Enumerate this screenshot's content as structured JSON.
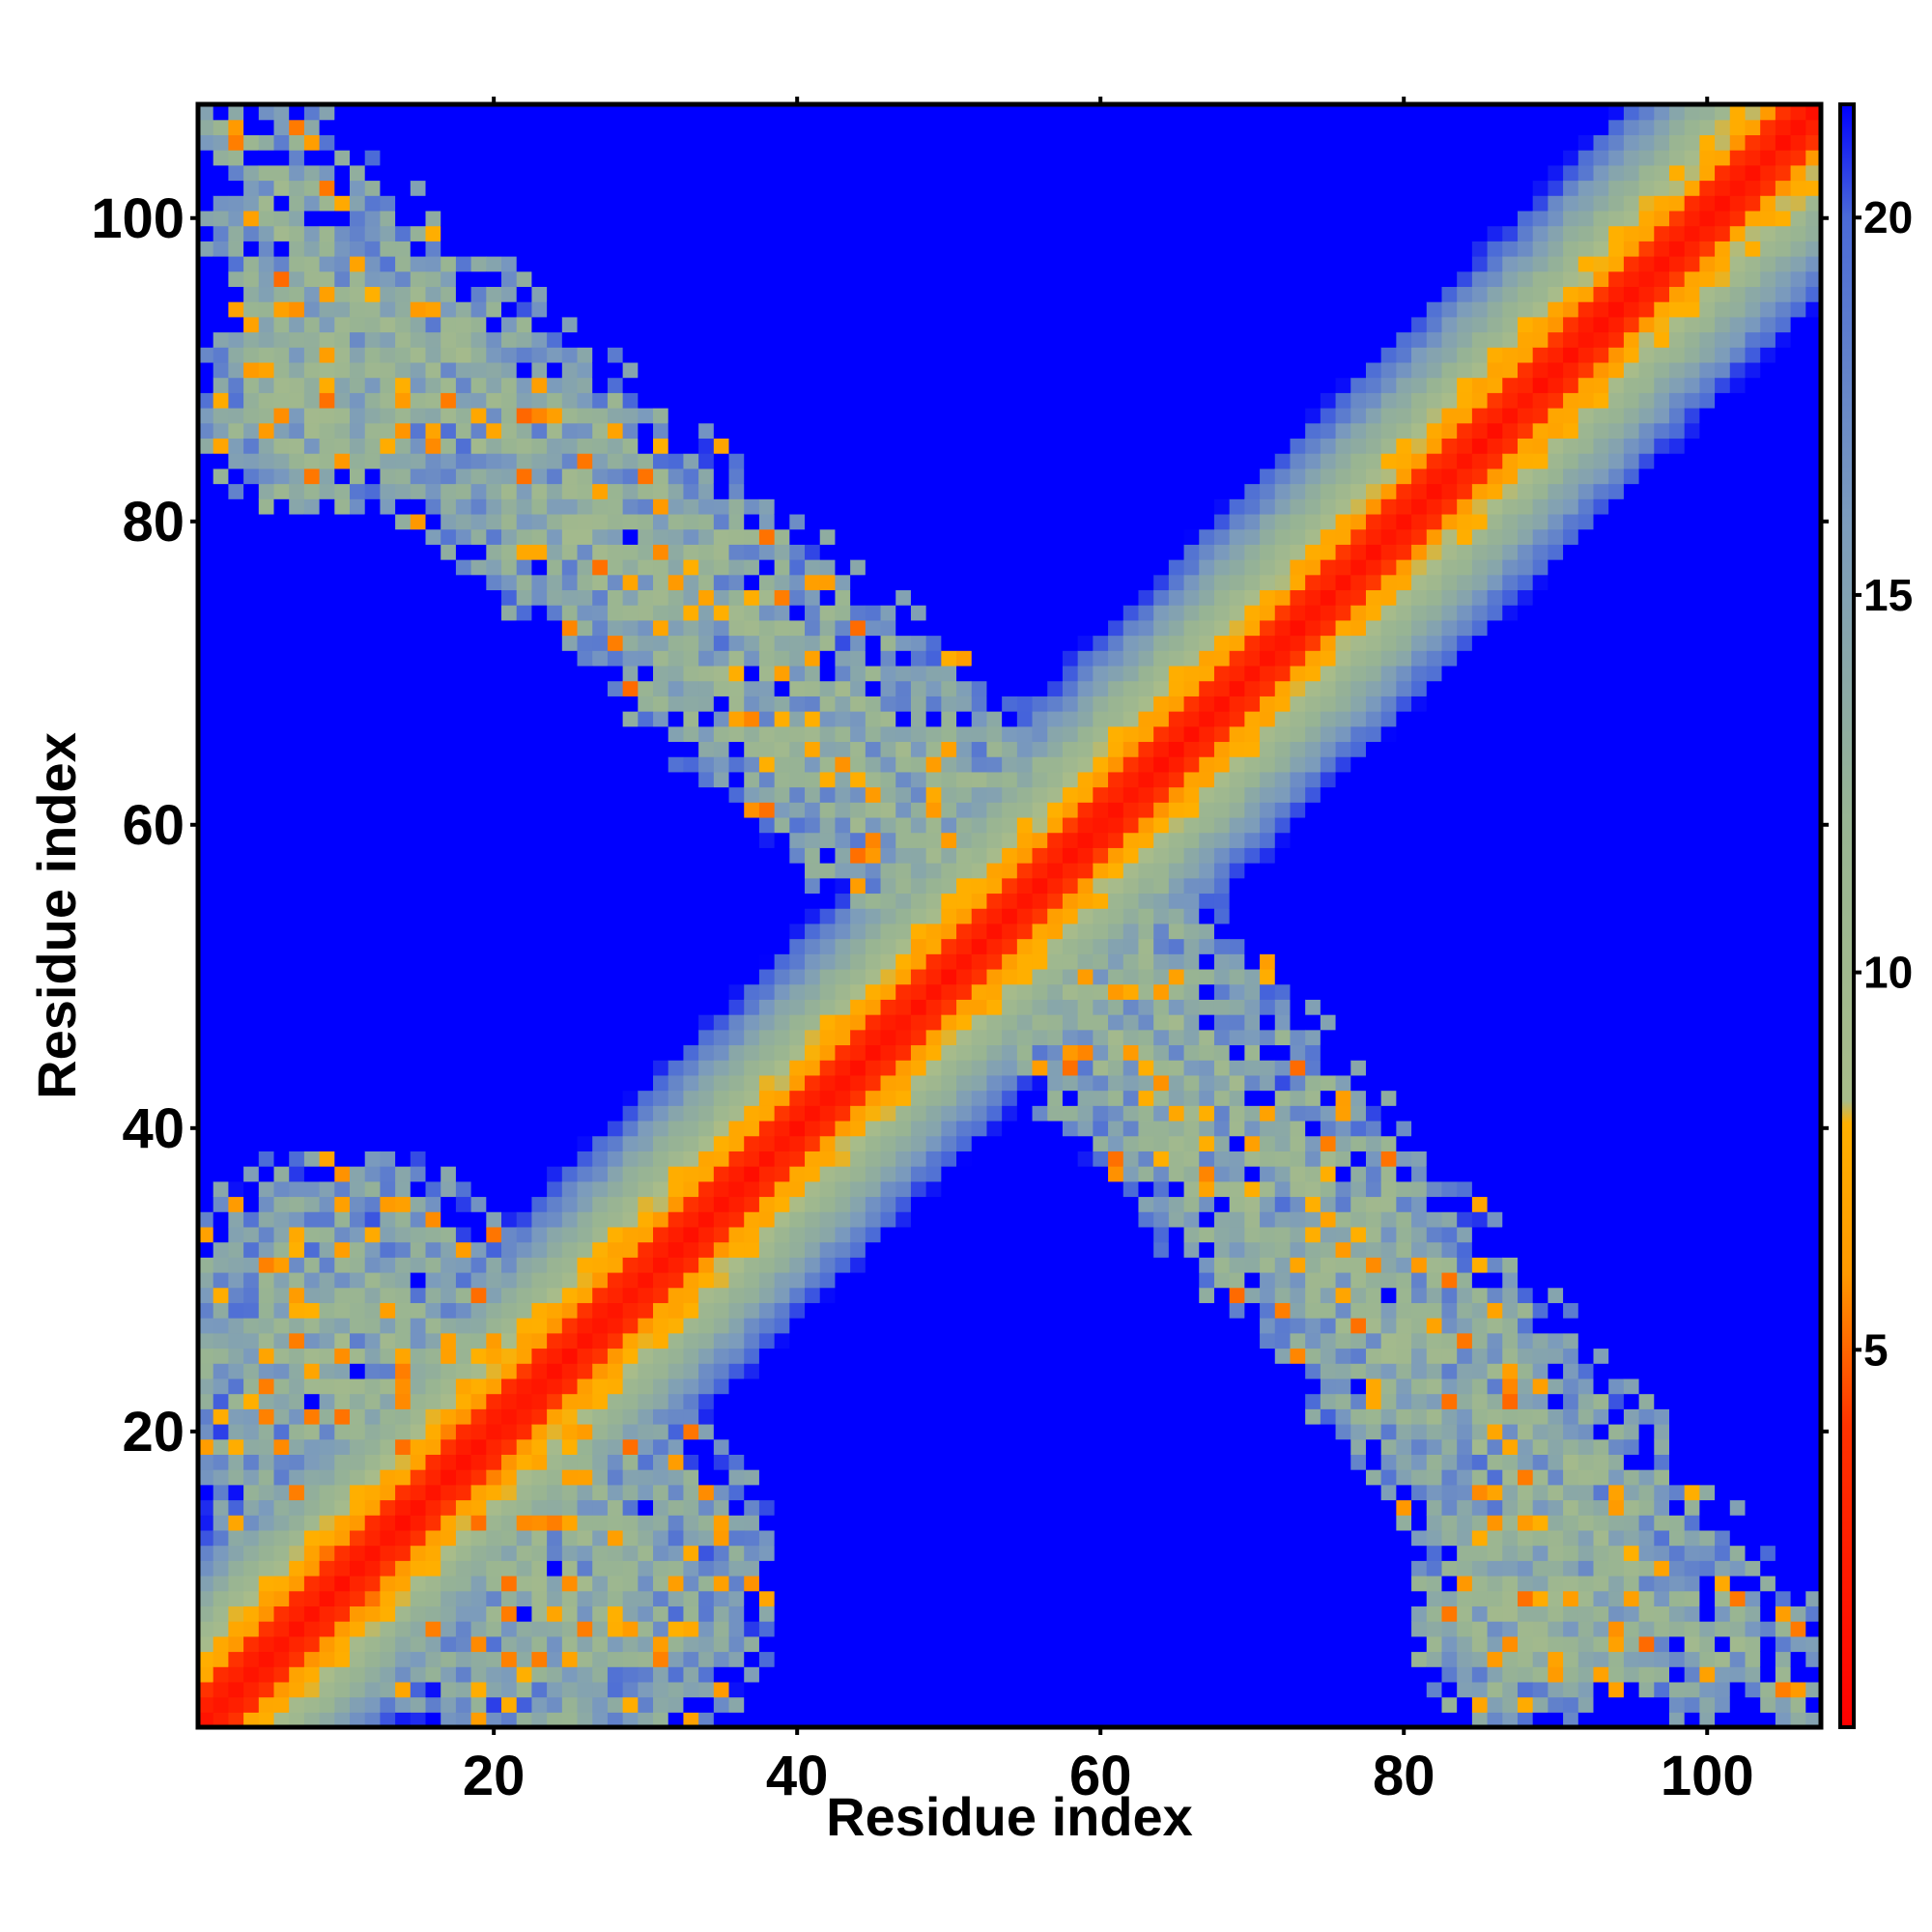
{
  "chart_data": {
    "type": "heatmap",
    "title": "",
    "xlabel": "Residue index",
    "ylabel": "Residue index",
    "x_range": [
      1,
      107
    ],
    "y_range": [
      1,
      107
    ],
    "x_ticks": [
      20,
      40,
      60,
      80,
      100
    ],
    "y_ticks": [
      20,
      40,
      60,
      80,
      100
    ],
    "colorbar": {
      "ticks": [
        5,
        10,
        15,
        20
      ],
      "range": [
        0,
        21.5
      ],
      "stops": [
        {
          "value": 0,
          "color": "#ff0000"
        },
        {
          "value": 4,
          "color": "#ff3300"
        },
        {
          "value": 6,
          "color": "#ff9900"
        },
        {
          "value": 8,
          "color": "#ffb000"
        },
        {
          "value": 8.3,
          "color": "#a8bc8a"
        },
        {
          "value": 12,
          "color": "#98b493"
        },
        {
          "value": 16,
          "color": "#7b9bbd"
        },
        {
          "value": 20,
          "color": "#4a6ad8"
        },
        {
          "value": 21.5,
          "color": "#0000ff"
        }
      ],
      "cutoff_color": "#0000ff"
    },
    "description_of_values": "Symmetric residue-residue distance map: near-zero along diagonal, rising with |i-j|; two off-diagonal contact bands forming an X shape, plus contact patches near the corners.",
    "diagonal_band": {
      "core_width": 2,
      "orange_width": 5,
      "green_width": 9,
      "blue_width": 13
    },
    "contact_bands": [
      {
        "from": [
          2,
          104
        ],
        "to": [
          60,
          55
        ],
        "width": 7
      },
      {
        "from": [
          55,
          52
        ],
        "to": [
          93,
          10
        ],
        "width": 7
      }
    ],
    "corner_patches": [
      {
        "center": [
          8,
          88
        ],
        "radius": 8
      },
      {
        "center": [
          88,
          8
        ],
        "radius": 8
      },
      {
        "center": [
          10,
          25
        ],
        "radius": 14
      },
      {
        "center": [
          25,
          10
        ],
        "radius": 14
      }
    ]
  }
}
